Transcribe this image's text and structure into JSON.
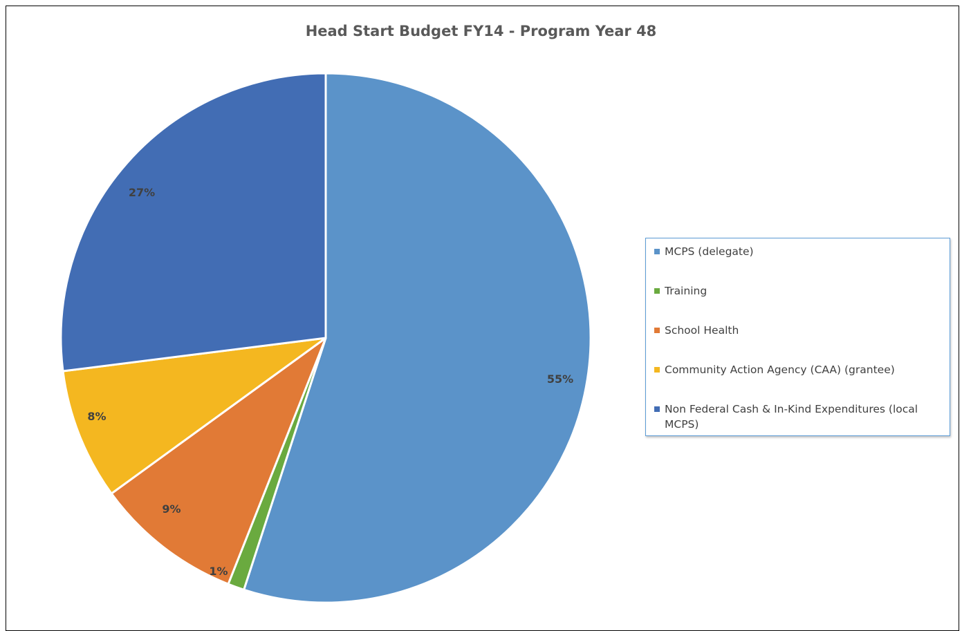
{
  "chart_data": {
    "type": "pie",
    "title": "Head Start Budget FY14 - Program Year 48",
    "slices": [
      {
        "name": "MCPS (delegate)",
        "value": 55,
        "label": "55%",
        "color": "#5b93c9"
      },
      {
        "name": "Training",
        "value": 1,
        "label": "1%",
        "color": "#6aaa3f"
      },
      {
        "name": "School Health",
        "value": 9,
        "label": "9%",
        "color": "#e17a36"
      },
      {
        "name": "Community Action Agency (CAA) (grantee)",
        "value": 8,
        "label": "8%",
        "color": "#f4b720"
      },
      {
        "name": "Non Federal Cash & In-Kind Expenditures (local MCPS)",
        "value": 27,
        "label": "27%",
        "color": "#426db4"
      }
    ],
    "legend_position": "right"
  }
}
